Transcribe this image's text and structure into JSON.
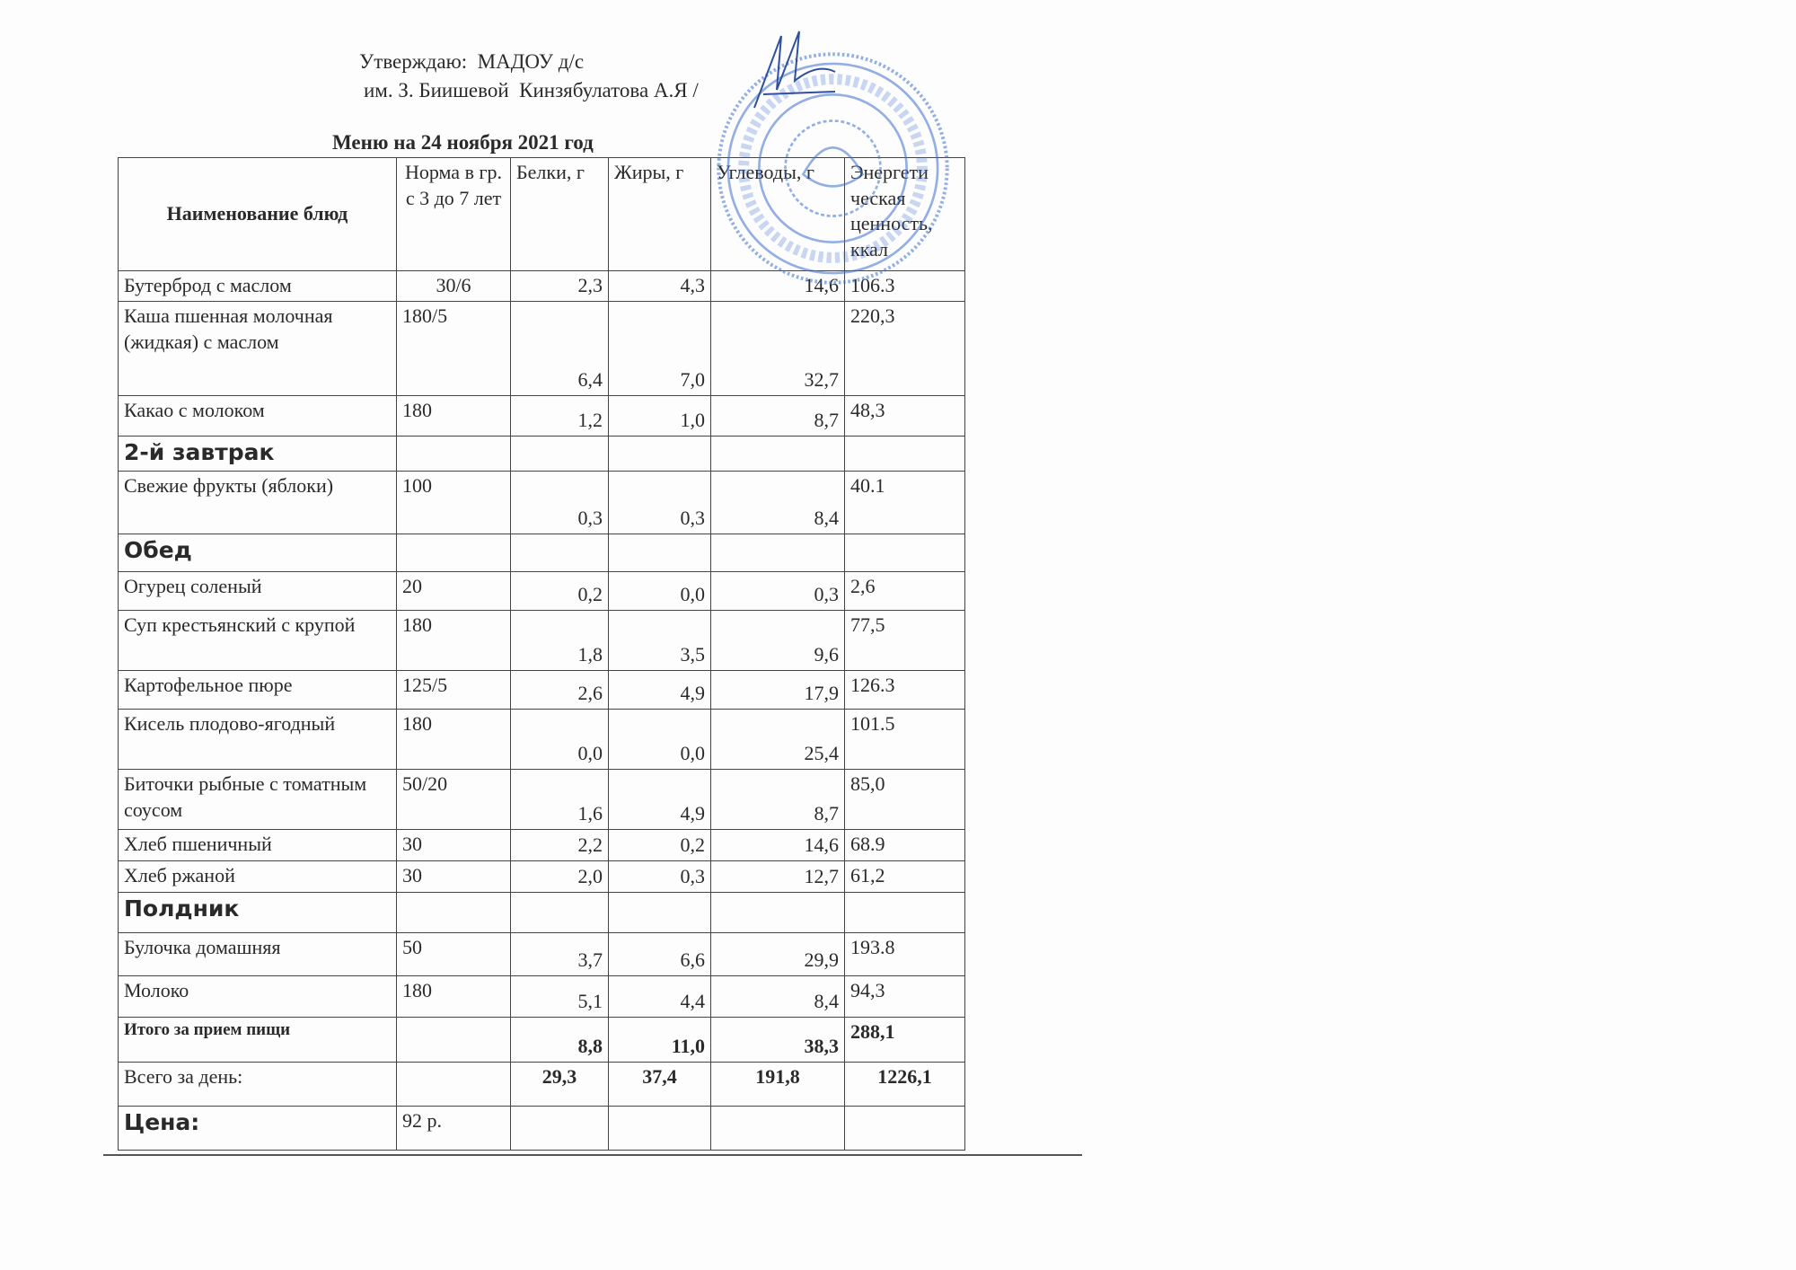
{
  "approval": {
    "line1": "Утверждаю:  МАДОУ д/с",
    "line2": "им. З. Биишевой  Кинзябулатова А.Я /"
  },
  "title": "Меню на 24 ноября  2021 год",
  "stamp_color": "#3b6fd0",
  "headers": {
    "name": "Наименование блюд",
    "norm": "Норма в гр. с 3 до 7 лет",
    "protein": "Белки, г",
    "fat": "Жиры, г",
    "carbs": "Углеводы, г",
    "energy": "Энергети ческая ценность, ккал"
  },
  "rows": [
    {
      "name": "Бутерброд с маслом",
      "norm": "30/6",
      "p": "2,3",
      "f": "4,3",
      "c": "14,6",
      "e": "106.3"
    },
    {
      "name": "Каша пшенная молочная (жидкая) с маслом",
      "norm": "180/5",
      "p": "6,4",
      "f": "7,0",
      "c": "32,7",
      "e": "220,3"
    },
    {
      "name": "Какао с молоком",
      "norm": "180",
      "p": "1,2",
      "f": "1,0",
      "c": "8,7",
      "e": "48,3"
    },
    {
      "section": "2-й завтрак"
    },
    {
      "name": "Свежие фрукты (яблоки)",
      "norm": "100",
      "p": "0,3",
      "f": "0,3",
      "c": "8,4",
      "e": "40.1"
    },
    {
      "section": "Обед"
    },
    {
      "name": "Огурец соленый",
      "norm": "20",
      "p": "0,2",
      "f": "0,0",
      "c": "0,3",
      "e": "2,6"
    },
    {
      "name": "Суп крестьянский с крупой",
      "norm": "180",
      "p": "1,8",
      "f": "3,5",
      "c": "9,6",
      "e": "77,5"
    },
    {
      "name": "Картофельное пюре",
      "norm": "125/5",
      "p": "2,6",
      "f": "4,9",
      "c": "17,9",
      "e": "126.3"
    },
    {
      "name": "Кисель плодово-ягодный",
      "norm": "180",
      "p": "0,0",
      "f": "0,0",
      "c": "25,4",
      "e": "101.5"
    },
    {
      "name": " Биточки рыбные с томатным соусом",
      "norm": "50/20",
      "p": "1,6",
      "f": "4,9",
      "c": "8,7",
      "e": "85,0"
    },
    {
      "name": "Хлеб пшеничный",
      "norm": "30",
      "p": "2,2",
      "f": "0,2",
      "c": "14,6",
      "e": "68.9"
    },
    {
      "name": "Хлеб ржаной",
      "norm": "30",
      "p": "2,0",
      "f": "0,3",
      "c": "12,7",
      "e": "61,2"
    },
    {
      "section": "Полдник"
    },
    {
      "name": "Булочка домашняя",
      "norm": "50",
      "p": "3,7",
      "f": "6,6",
      "c": "29,9",
      "e": "193.8"
    },
    {
      "name": "Молоко",
      "norm": "180",
      "p": "5,1",
      "f": "4,4",
      "c": "8,4",
      "e": "94,3"
    }
  ],
  "meal_total": {
    "label": "Итого за прием пищи",
    "p": "8,8",
    "f": "11,0",
    "c": "38,3",
    "e": "288,1"
  },
  "day_total": {
    "label": "Всего за день:",
    "p": "29,3",
    "f": "37,4",
    "c": "191,8",
    "e": "1226,1"
  },
  "price": {
    "label": "Цена:",
    "value": "92 р."
  }
}
